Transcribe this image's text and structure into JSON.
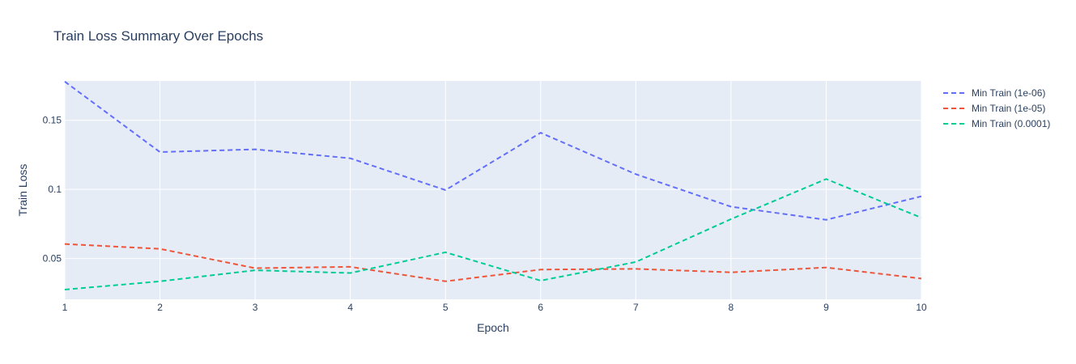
{
  "chart_data": {
    "type": "line",
    "title": "Train Loss Summary Over Epochs",
    "xlabel": "Epoch",
    "ylabel": "Train Loss",
    "x": [
      1,
      2,
      3,
      4,
      5,
      6,
      7,
      8,
      9,
      10
    ],
    "xlim": [
      1,
      10
    ],
    "ylim": [
      0.0205,
      0.1785
    ],
    "xticks": [
      1,
      2,
      3,
      4,
      5,
      6,
      7,
      8,
      9,
      10
    ],
    "yticks": [
      0.05,
      0.1,
      0.15
    ],
    "ytick_labels": [
      "0.05",
      "0.1",
      "0.15"
    ],
    "grid": true,
    "legend_position": "top-right, outside plot",
    "line_style": "dashed",
    "series": [
      {
        "name": "Min Train (1e-06)",
        "color": "#636efa",
        "values": [
          0.178,
          0.127,
          0.129,
          0.1225,
          0.0995,
          0.141,
          0.111,
          0.0875,
          0.078,
          0.095
        ]
      },
      {
        "name": "Min Train (1e-05)",
        "color": "#ef553b",
        "values": [
          0.0605,
          0.057,
          0.043,
          0.044,
          0.0335,
          0.042,
          0.0425,
          0.04,
          0.0435,
          0.0355
        ]
      },
      {
        "name": "Min Train (0.0001)",
        "color": "#00cc96",
        "values": [
          0.0275,
          0.0335,
          0.0415,
          0.0395,
          0.0545,
          0.034,
          0.0475,
          0.0785,
          0.1075,
          0.0795
        ]
      }
    ]
  }
}
